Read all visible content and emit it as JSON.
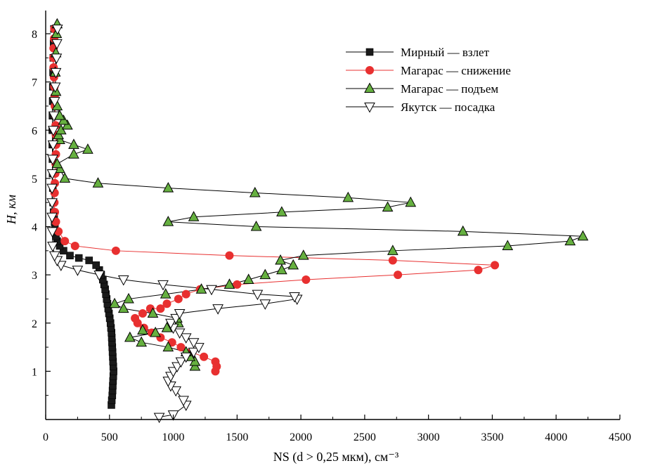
{
  "chart_data": {
    "type": "scatter",
    "xlabel": "NS (d > 0,25 мкм), см⁻³",
    "ylabel": "H, км",
    "xlim": [
      0,
      4500
    ],
    "ylim": [
      0,
      8.5
    ],
    "xticks": [
      0,
      500,
      1000,
      1500,
      2000,
      2500,
      3000,
      3500,
      4000,
      4500
    ],
    "yticks": [
      1,
      2,
      3,
      4,
      5,
      6,
      7,
      8
    ],
    "grid": false,
    "legend_position": "top-right",
    "series": [
      {
        "name": "Мирный — взлет",
        "marker": "square",
        "color": "#000000",
        "fill": "#1a1a1a",
        "points": [
          [
            515,
            0.3
          ],
          [
            518,
            0.4
          ],
          [
            522,
            0.5
          ],
          [
            524,
            0.6
          ],
          [
            526,
            0.7
          ],
          [
            528,
            0.8
          ],
          [
            530,
            0.9
          ],
          [
            532,
            1.0
          ],
          [
            530,
            1.1
          ],
          [
            528,
            1.2
          ],
          [
            526,
            1.3
          ],
          [
            524,
            1.4
          ],
          [
            522,
            1.5
          ],
          [
            520,
            1.6
          ],
          [
            518,
            1.7
          ],
          [
            516,
            1.8
          ],
          [
            512,
            1.9
          ],
          [
            508,
            2.0
          ],
          [
            502,
            2.1
          ],
          [
            496,
            2.2
          ],
          [
            490,
            2.3
          ],
          [
            484,
            2.4
          ],
          [
            478,
            2.5
          ],
          [
            472,
            2.6
          ],
          [
            466,
            2.7
          ],
          [
            458,
            2.8
          ],
          [
            448,
            2.9
          ],
          [
            435,
            3.0
          ],
          [
            420,
            3.1
          ],
          [
            395,
            3.2
          ],
          [
            340,
            3.3
          ],
          [
            260,
            3.35
          ],
          [
            190,
            3.4
          ],
          [
            140,
            3.5
          ],
          [
            110,
            3.6
          ],
          [
            90,
            3.7
          ],
          [
            80,
            3.8
          ],
          [
            75,
            3.9
          ],
          [
            72,
            4.0
          ],
          [
            70,
            4.1
          ],
          [
            66,
            4.2
          ],
          [
            62,
            4.3
          ],
          [
            58,
            4.5
          ],
          [
            56,
            4.8
          ],
          [
            54,
            5.1
          ],
          [
            53,
            5.4
          ],
          [
            52,
            5.7
          ],
          [
            52,
            6.0
          ],
          [
            53,
            6.3
          ],
          [
            55,
            6.6
          ],
          [
            56,
            6.9
          ],
          [
            58,
            7.2
          ],
          [
            60,
            7.5
          ],
          [
            62,
            7.8
          ],
          [
            65,
            8.1
          ]
        ]
      },
      {
        "name": "Магарас — снижение",
        "marker": "circle",
        "color": "#e83030",
        "fill": "#e83030",
        "points": [
          [
            68,
            8.1
          ],
          [
            66,
            7.9
          ],
          [
            62,
            7.7
          ],
          [
            60,
            7.5
          ],
          [
            62,
            7.3
          ],
          [
            65,
            7.1
          ],
          [
            68,
            6.9
          ],
          [
            70,
            6.7
          ],
          [
            72,
            6.5
          ],
          [
            75,
            6.3
          ],
          [
            78,
            6.1
          ],
          [
            80,
            5.9
          ],
          [
            82,
            5.7
          ],
          [
            80,
            5.5
          ],
          [
            78,
            5.3
          ],
          [
            75,
            5.1
          ],
          [
            72,
            4.9
          ],
          [
            70,
            4.7
          ],
          [
            68,
            4.5
          ],
          [
            72,
            4.3
          ],
          [
            80,
            4.1
          ],
          [
            100,
            3.9
          ],
          [
            150,
            3.7
          ],
          [
            230,
            3.6
          ],
          [
            550,
            3.5
          ],
          [
            1440,
            3.4
          ],
          [
            2720,
            3.3
          ],
          [
            3520,
            3.2
          ],
          [
            3390,
            3.1
          ],
          [
            2760,
            3.0
          ],
          [
            2040,
            2.9
          ],
          [
            1500,
            2.8
          ],
          [
            1210,
            2.7
          ],
          [
            1100,
            2.6
          ],
          [
            1040,
            2.5
          ],
          [
            950,
            2.4
          ],
          [
            900,
            2.3
          ],
          [
            820,
            2.3
          ],
          [
            760,
            2.2
          ],
          [
            700,
            2.1
          ],
          [
            720,
            2.0
          ],
          [
            770,
            1.9
          ],
          [
            830,
            1.8
          ],
          [
            900,
            1.7
          ],
          [
            990,
            1.6
          ],
          [
            1060,
            1.5
          ],
          [
            1140,
            1.4
          ],
          [
            1240,
            1.3
          ],
          [
            1330,
            1.2
          ],
          [
            1340,
            1.1
          ],
          [
            1330,
            1.0
          ]
        ]
      },
      {
        "name": "Магарас — подъем",
        "marker": "triangle-up",
        "color": "#000000",
        "fill": "#66b040",
        "points": [
          [
            1170,
            1.1
          ],
          [
            1170,
            1.2
          ],
          [
            1130,
            1.3
          ],
          [
            1100,
            1.4
          ],
          [
            960,
            1.5
          ],
          [
            750,
            1.6
          ],
          [
            660,
            1.7
          ],
          [
            860,
            1.8
          ],
          [
            760,
            1.85
          ],
          [
            950,
            1.9
          ],
          [
            1040,
            2.0
          ],
          [
            1030,
            2.1
          ],
          [
            840,
            2.2
          ],
          [
            610,
            2.3
          ],
          [
            540,
            2.4
          ],
          [
            650,
            2.5
          ],
          [
            940,
            2.6
          ],
          [
            1220,
            2.7
          ],
          [
            1440,
            2.8
          ],
          [
            1590,
            2.9
          ],
          [
            1720,
            3.0
          ],
          [
            1850,
            3.1
          ],
          [
            1940,
            3.2
          ],
          [
            1840,
            3.3
          ],
          [
            2020,
            3.4
          ],
          [
            2720,
            3.5
          ],
          [
            3620,
            3.6
          ],
          [
            4110,
            3.7
          ],
          [
            4210,
            3.8
          ],
          [
            3270,
            3.9
          ],
          [
            1650,
            4.0
          ],
          [
            960,
            4.1
          ],
          [
            1160,
            4.2
          ],
          [
            1850,
            4.3
          ],
          [
            2680,
            4.4
          ],
          [
            2860,
            4.5
          ],
          [
            2370,
            4.6
          ],
          [
            1640,
            4.7
          ],
          [
            960,
            4.8
          ],
          [
            410,
            4.9
          ],
          [
            150,
            5.0
          ],
          [
            110,
            5.2
          ],
          [
            90,
            5.3
          ],
          [
            220,
            5.5
          ],
          [
            330,
            5.6
          ],
          [
            220,
            5.7
          ],
          [
            110,
            5.8
          ],
          [
            100,
            5.9
          ],
          [
            120,
            6.0
          ],
          [
            170,
            6.1
          ],
          [
            140,
            6.2
          ],
          [
            110,
            6.3
          ],
          [
            90,
            6.5
          ],
          [
            80,
            6.8
          ],
          [
            75,
            7.2
          ],
          [
            80,
            7.6
          ],
          [
            85,
            8.0
          ],
          [
            90,
            8.2
          ]
        ]
      },
      {
        "name": "Якутск — посадка",
        "marker": "triangle-down",
        "color": "#000000",
        "fill": "#ffffff",
        "points": [
          [
            890,
            0.05
          ],
          [
            1000,
            0.1
          ],
          [
            1100,
            0.3
          ],
          [
            1080,
            0.4
          ],
          [
            1020,
            0.6
          ],
          [
            980,
            0.7
          ],
          [
            960,
            0.8
          ],
          [
            980,
            0.9
          ],
          [
            1000,
            1.0
          ],
          [
            1030,
            1.1
          ],
          [
            1060,
            1.2
          ],
          [
            1100,
            1.3
          ],
          [
            1160,
            1.4
          ],
          [
            1200,
            1.5
          ],
          [
            1160,
            1.6
          ],
          [
            1100,
            1.7
          ],
          [
            1050,
            1.8
          ],
          [
            1000,
            1.9
          ],
          [
            980,
            2.0
          ],
          [
            1020,
            2.1
          ],
          [
            1050,
            2.2
          ],
          [
            1350,
            2.3
          ],
          [
            1720,
            2.4
          ],
          [
            1970,
            2.5
          ],
          [
            1950,
            2.55
          ],
          [
            1660,
            2.6
          ],
          [
            1300,
            2.7
          ],
          [
            920,
            2.8
          ],
          [
            610,
            2.9
          ],
          [
            420,
            3.0
          ],
          [
            250,
            3.1
          ],
          [
            120,
            3.2
          ],
          [
            90,
            3.3
          ],
          [
            70,
            3.4
          ],
          [
            55,
            3.6
          ],
          [
            52,
            3.9
          ],
          [
            50,
            4.2
          ],
          [
            50,
            4.5
          ],
          [
            50,
            4.8
          ],
          [
            52,
            5.1
          ],
          [
            55,
            5.4
          ],
          [
            58,
            5.7
          ],
          [
            60,
            6.0
          ],
          [
            65,
            6.3
          ],
          [
            70,
            6.6
          ],
          [
            75,
            6.9
          ],
          [
            80,
            7.2
          ],
          [
            85,
            7.5
          ],
          [
            88,
            7.8
          ],
          [
            92,
            8.1
          ]
        ]
      }
    ]
  }
}
